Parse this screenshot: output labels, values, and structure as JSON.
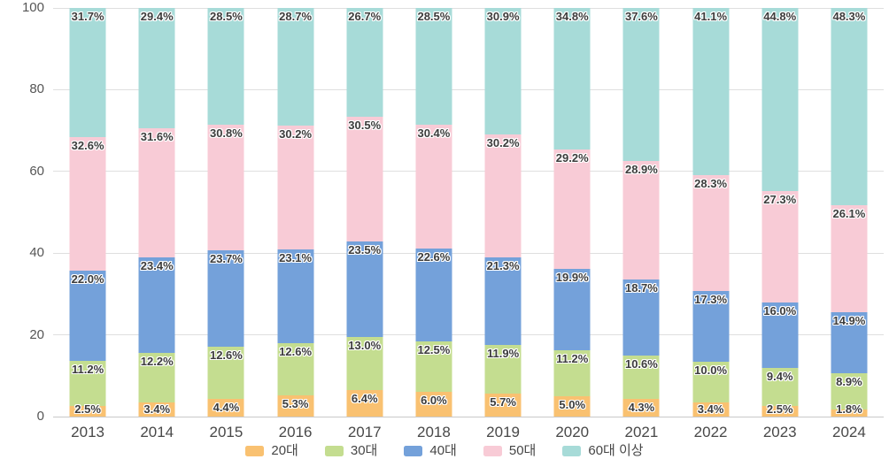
{
  "chart_data": {
    "type": "bar",
    "stacked": true,
    "title": "",
    "xlabel": "",
    "ylabel": "",
    "categories": [
      "2013",
      "2014",
      "2015",
      "2016",
      "2017",
      "2018",
      "2019",
      "2020",
      "2021",
      "2022",
      "2023",
      "2024"
    ],
    "series": [
      {
        "name": "20대",
        "color": "#f9c171",
        "values": [
          2.5,
          3.4,
          4.4,
          5.3,
          6.4,
          6.0,
          5.7,
          5.0,
          4.3,
          3.4,
          2.5,
          1.8
        ]
      },
      {
        "name": "30대",
        "color": "#c4dd90",
        "values": [
          11.2,
          12.2,
          12.6,
          12.6,
          13.0,
          12.5,
          11.9,
          11.2,
          10.6,
          10.0,
          9.4,
          8.9
        ]
      },
      {
        "name": "40대",
        "color": "#74a1da",
        "values": [
          22.0,
          23.4,
          23.7,
          23.1,
          23.5,
          22.6,
          21.3,
          19.9,
          18.7,
          17.3,
          16.0,
          14.9
        ]
      },
      {
        "name": "50대",
        "color": "#f8cbd6",
        "values": [
          32.6,
          31.6,
          30.8,
          30.2,
          30.5,
          30.4,
          30.2,
          29.2,
          28.9,
          28.3,
          27.3,
          26.1
        ]
      },
      {
        "name": "60대 이상",
        "color": "#a7dbd8",
        "values": [
          31.7,
          29.4,
          28.5,
          28.7,
          26.7,
          28.5,
          30.9,
          34.8,
          37.6,
          41.1,
          44.8,
          48.3
        ]
      }
    ],
    "ylim": [
      0,
      100
    ],
    "yticks": [
      "0",
      "20",
      "40",
      "60",
      "80",
      "100"
    ],
    "label_suffix": "%",
    "grid": true,
    "legend_position": "bottom"
  },
  "style": {
    "grid_color": "#dfdfdf",
    "baseline_color": "#c9c9c9",
    "ytick_color": "#565656",
    "xtick_color": "#484848",
    "segment_label_color": "#3c3c3c",
    "background": "#ffffff"
  }
}
